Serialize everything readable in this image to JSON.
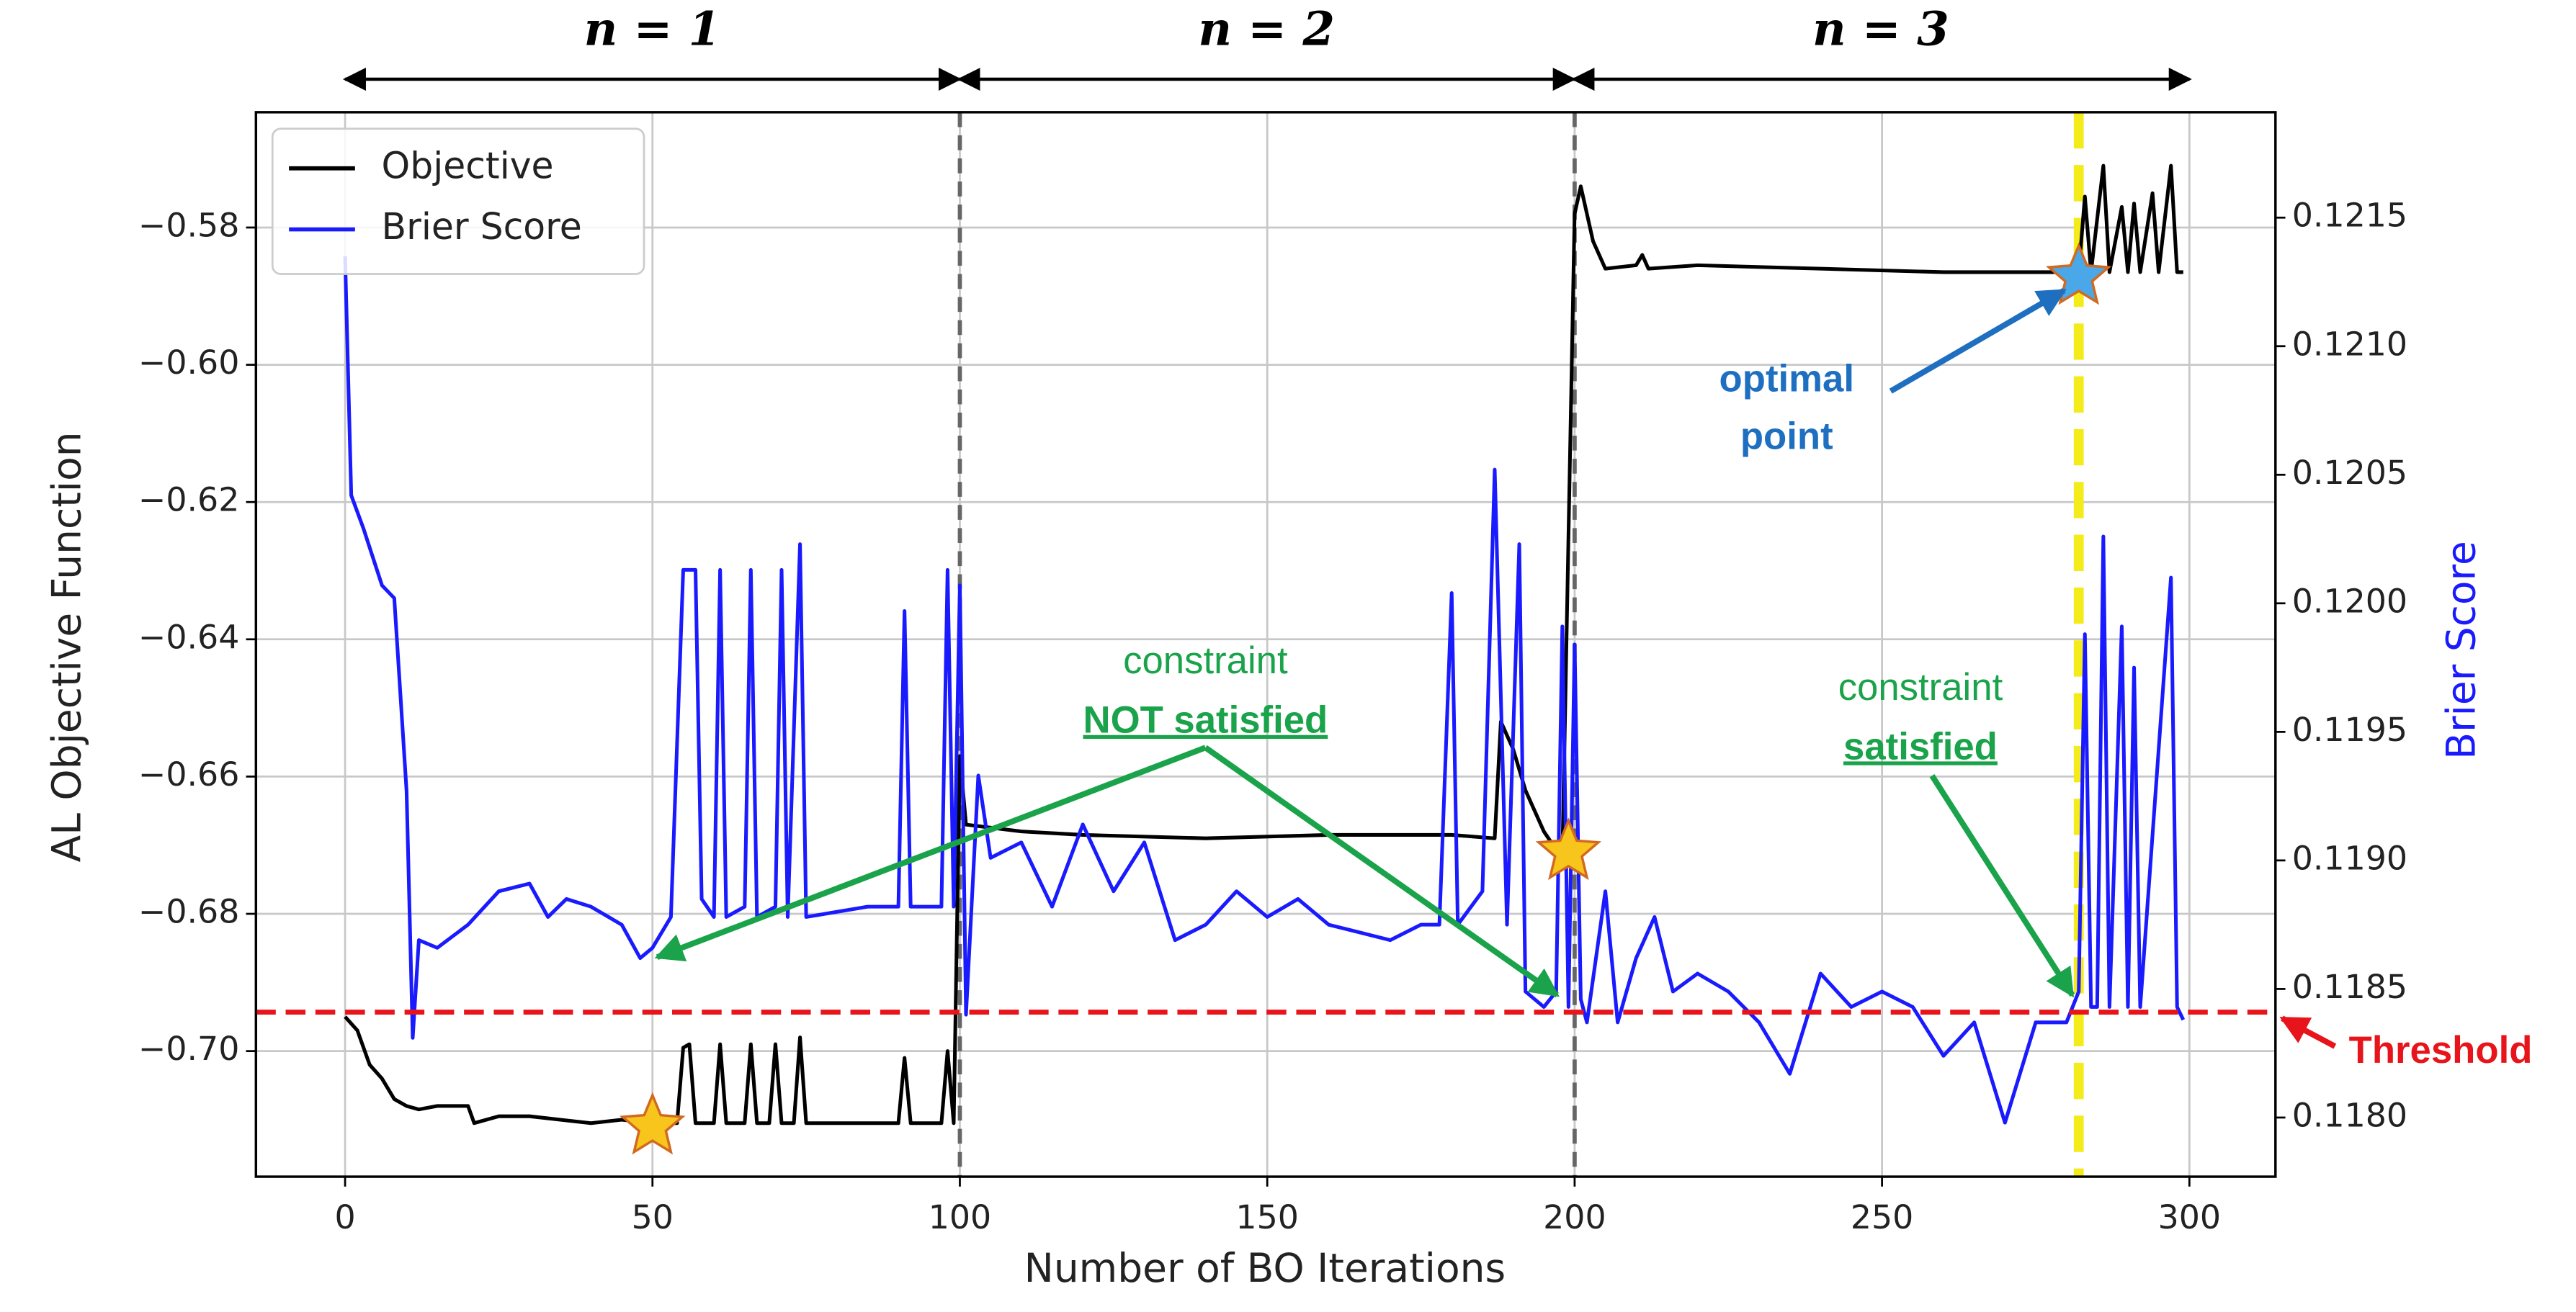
{
  "chart_data": {
    "type": "line",
    "xlabel": "Number of BO Iterations",
    "ylabel": "AL Objective Function",
    "y2label": "Brier Score",
    "xlim": [
      -14.5,
      314
    ],
    "ylim": [
      -0.7183,
      -0.5632
    ],
    "y2lim": [
      0.11777,
      0.12191
    ],
    "xticks": [
      0,
      50,
      100,
      150,
      200,
      250,
      300
    ],
    "yticks": [
      {
        "value": -0.7,
        "label": "−0.70"
      },
      {
        "value": -0.68,
        "label": "−0.68"
      },
      {
        "value": -0.66,
        "label": "−0.66"
      },
      {
        "value": -0.64,
        "label": "−0.64"
      },
      {
        "value": -0.62,
        "label": "−0.62"
      },
      {
        "value": -0.6,
        "label": "−0.60"
      },
      {
        "value": -0.58,
        "label": "−0.58"
      }
    ],
    "y2ticks": [
      {
        "value": 0.118,
        "label": "0.1180"
      },
      0.1185,
      {
        "value": 0.119,
        "label": "0.1190"
      },
      0.1195,
      {
        "value": 0.12,
        "label": "0.1200"
      },
      0.1205,
      {
        "value": 0.121,
        "label": "0.1210"
      },
      0.1215
    ],
    "grid": true,
    "legend": "upper left",
    "y2color": "#1a1aff",
    "series": [
      {
        "name": "Objective",
        "color": "#000000",
        "x": [
          0,
          2,
          4,
          6,
          8,
          10,
          12,
          15,
          20,
          21,
          25,
          30,
          35,
          40,
          45,
          50,
          54,
          55,
          56,
          57,
          60,
          61,
          62,
          65,
          66,
          67,
          69,
          70,
          71,
          73,
          74,
          75,
          90,
          91,
          92,
          97,
          98,
          99,
          100,
          101,
          110,
          120,
          140,
          160,
          180,
          187,
          188,
          190,
          192,
          195,
          198,
          200,
          201,
          203,
          205,
          210,
          211,
          212,
          220,
          240,
          260,
          280,
          282,
          283,
          284,
          286,
          287,
          289,
          290,
          291,
          292,
          294,
          295,
          297,
          298,
          299
        ],
        "values": [
          -0.695,
          -0.697,
          -0.702,
          -0.704,
          -0.707,
          -0.708,
          -0.7085,
          -0.708,
          -0.708,
          -0.7105,
          -0.7095,
          -0.7095,
          -0.71,
          -0.7105,
          -0.71,
          -0.7105,
          -0.7105,
          -0.6995,
          -0.699,
          -0.7105,
          -0.7105,
          -0.699,
          -0.7105,
          -0.7105,
          -0.699,
          -0.7105,
          -0.7105,
          -0.699,
          -0.7105,
          -0.7105,
          -0.698,
          -0.7105,
          -0.7105,
          -0.701,
          -0.7105,
          -0.7105,
          -0.7,
          -0.7105,
          -0.657,
          -0.667,
          -0.668,
          -0.6685,
          -0.669,
          -0.6685,
          -0.6685,
          -0.669,
          -0.652,
          -0.656,
          -0.662,
          -0.668,
          -0.672,
          -0.578,
          -0.574,
          -0.582,
          -0.586,
          -0.5855,
          -0.584,
          -0.586,
          -0.5855,
          -0.586,
          -0.5865,
          -0.5865,
          -0.5865,
          -0.5755,
          -0.5865,
          -0.571,
          -0.5865,
          -0.577,
          -0.5865,
          -0.5765,
          -0.5865,
          -0.575,
          -0.5865,
          -0.571,
          -0.5865,
          -0.5865
        ]
      },
      {
        "name": "Brier Score",
        "color": "#1a1aff",
        "axis": "y2",
        "x": [
          0,
          1,
          3,
          6,
          8,
          10,
          11,
          12,
          15,
          20,
          25,
          30,
          33,
          36,
          40,
          45,
          48,
          50,
          53,
          55,
          57,
          58,
          60,
          61,
          62,
          65,
          66,
          67,
          70,
          71,
          72,
          74,
          75,
          85,
          90,
          91,
          92,
          97,
          98,
          99,
          100,
          101,
          103,
          105,
          110,
          115,
          120,
          125,
          130,
          135,
          140,
          145,
          150,
          155,
          160,
          165,
          170,
          175,
          178,
          180,
          181,
          185,
          187,
          189,
          191,
          192,
          195,
          197,
          198,
          199,
          200,
          201,
          202,
          205,
          207,
          210,
          213,
          216,
          220,
          225,
          230,
          235,
          240,
          245,
          250,
          255,
          260,
          265,
          270,
          275,
          280,
          282,
          283,
          284,
          285,
          286,
          287,
          289,
          290,
          291,
          292,
          297,
          298,
          299
        ],
        "values": [
          0.12135,
          0.12042,
          0.12029,
          0.12007,
          0.12002,
          0.11927,
          0.11831,
          0.11869,
          0.11866,
          0.11875,
          0.11888,
          0.11891,
          0.11878,
          0.11885,
          0.11882,
          0.11875,
          0.11862,
          0.11866,
          0.11878,
          0.12013,
          0.12013,
          0.11885,
          0.11878,
          0.12013,
          0.11878,
          0.11882,
          0.12013,
          0.11878,
          0.11882,
          0.12013,
          0.11878,
          0.12023,
          0.11878,
          0.11882,
          0.11882,
          0.11997,
          0.11882,
          0.11882,
          0.12013,
          0.11882,
          0.12007,
          0.1184,
          0.11933,
          0.11901,
          0.11907,
          0.11882,
          0.11914,
          0.11888,
          0.11907,
          0.11869,
          0.11875,
          0.11888,
          0.11878,
          0.11885,
          0.11875,
          0.11872,
          0.11869,
          0.11875,
          0.11875,
          0.12004,
          0.11875,
          0.11888,
          0.12052,
          0.11875,
          0.12023,
          0.11849,
          0.11843,
          0.11849,
          0.11991,
          0.11843,
          0.11984,
          0.11846,
          0.11837,
          0.11888,
          0.11837,
          0.11862,
          0.11878,
          0.11849,
          0.11856,
          0.11849,
          0.11837,
          0.11817,
          0.11856,
          0.11843,
          0.11849,
          0.11843,
          0.11824,
          0.11837,
          0.11798,
          0.11837,
          0.11837,
          0.11849,
          0.11988,
          0.11843,
          0.11843,
          0.12026,
          0.11843,
          0.11991,
          0.11843,
          0.11975,
          0.11843,
          0.1201,
          0.11843,
          0.11838
        ]
      }
    ],
    "threshold": 0.11841,
    "threshold_color": "#e8141b",
    "vlines": [
      100,
      200
    ],
    "optimal_x": 282,
    "markers": [
      {
        "x": 50,
        "y": -0.711,
        "color": "#f7c51c"
      },
      {
        "x": 199,
        "y": -0.671,
        "color": "#f7c51c"
      },
      {
        "x": 282,
        "y": -0.5872,
        "color": "#4aa8e8"
      }
    ],
    "n_labels": [
      "n = 1",
      "n = 2",
      "n = 3"
    ],
    "annotations": [
      "constraint",
      "NOT satisfied",
      "constraint",
      "satisfied",
      "optimal",
      "point",
      "Threshold"
    ]
  }
}
